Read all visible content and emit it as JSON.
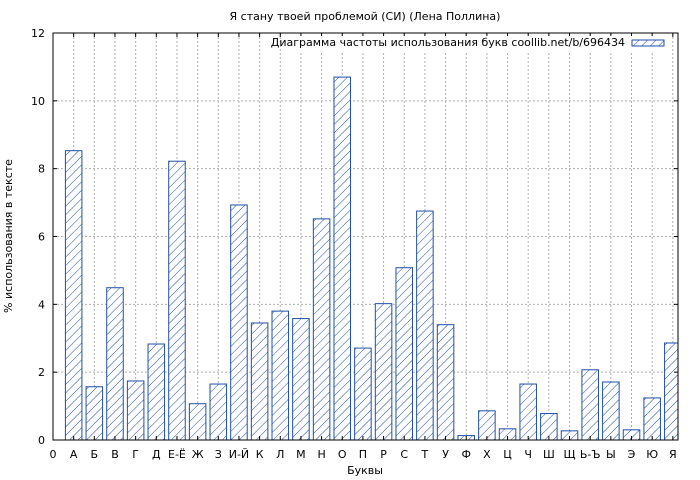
{
  "chart_data": {
    "type": "bar",
    "title": "Я стану твоей проблемой (СИ) (Лена Поллина)",
    "xlabel": "Буквы",
    "ylabel": "% использования в тексте",
    "ylim": [
      0,
      12
    ],
    "yticks": [
      "0",
      "2",
      "4",
      "6",
      "8",
      "10",
      "12"
    ],
    "x_origin_label": "0",
    "grid": true,
    "legend_position": "top-right",
    "categories": [
      "А",
      "Б",
      "В",
      "Г",
      "Д",
      "Е-Ё",
      "Ж",
      "З",
      "И-Й",
      "К",
      "Л",
      "М",
      "Н",
      "О",
      "П",
      "Р",
      "С",
      "Т",
      "У",
      "Ф",
      "Х",
      "Ц",
      "Ч",
      "Ш",
      "Щ",
      "Ь-Ъ",
      "Ы",
      "Э",
      "Ю",
      "Я"
    ],
    "series": [
      {
        "name": "Диаграмма частоты использования букв coollib.net/b/696434",
        "values": [
          8.53,
          1.57,
          4.49,
          1.74,
          2.83,
          8.22,
          1.07,
          1.65,
          6.93,
          3.45,
          3.8,
          3.58,
          6.52,
          10.7,
          2.71,
          4.02,
          5.08,
          6.75,
          3.4,
          0.13,
          0.86,
          0.33,
          1.65,
          0.78,
          0.27,
          2.07,
          1.71,
          0.3,
          1.24,
          2.86
        ]
      }
    ],
    "colors": {
      "bar_stroke": "#1f4fa8",
      "grid": "#b0b0b0",
      "axis": "#000000"
    }
  }
}
